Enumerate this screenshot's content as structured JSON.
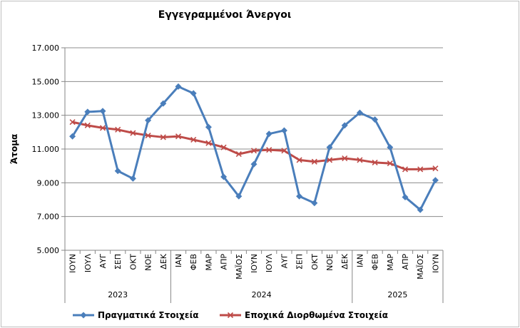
{
  "chart_data": {
    "type": "line",
    "title": "Εγγεγραμμένοι Άνεργοι",
    "ylabel": "Άτομα",
    "xlabel": "",
    "ylim": [
      5000,
      17000
    ],
    "yticks": [
      5000,
      7000,
      9000,
      11000,
      13000,
      15000,
      17000
    ],
    "ytick_labels": [
      "5.000",
      "7.000",
      "9.000",
      "11.000",
      "13.000",
      "15.000",
      "17.000"
    ],
    "grid": true,
    "legend_position": "bottom",
    "categories": [
      "ΙΟΥΝ",
      "ΙΟΥΛ",
      "ΑΥΓ",
      "ΣΕΠ",
      "ΟΚΤ",
      "ΝΟΕ",
      "ΔΕΚ",
      "ΙΑΝ",
      "ΦΕΒ",
      "ΜΑΡ",
      "ΑΠΡ",
      "ΜΑΪΟΣ",
      "ΙΟΥΝ",
      "ΙΟΥΛ",
      "ΑΥΓ",
      "ΣΕΠ",
      "ΟΚΤ",
      "ΝΟΕ",
      "ΔΕΚ",
      "ΙΑΝ",
      "ΦΕΒ",
      "ΜΑΡ",
      "ΑΠΡ",
      "ΜΑΪΟΣ",
      "ΙΟΥΝ"
    ],
    "year_groups": [
      {
        "label": "2023",
        "start": 0,
        "end": 6
      },
      {
        "label": "2024",
        "start": 7,
        "end": 18
      },
      {
        "label": "2025",
        "start": 19,
        "end": 24
      }
    ],
    "series": [
      {
        "name": "Πραγματικά Στοιχεία",
        "color": "#4a7ebb",
        "marker": "diamond",
        "values": [
          11750,
          13200,
          13250,
          9700,
          9250,
          12700,
          13700,
          14700,
          14300,
          12300,
          9350,
          8200,
          10100,
          11900,
          12100,
          8200,
          7800,
          11100,
          12400,
          13150,
          12750,
          11100,
          8150,
          7400,
          9150
        ]
      },
      {
        "name": "Εποχικά Διορθωμένα Στοιχεία",
        "color": "#be4b48",
        "marker": "cross",
        "values": [
          12600,
          12400,
          12250,
          12150,
          11950,
          11800,
          11700,
          11750,
          11550,
          11350,
          11100,
          10700,
          10900,
          10950,
          10900,
          10350,
          10250,
          10350,
          10450,
          10350,
          10200,
          10150,
          9800,
          9800,
          9850
        ]
      }
    ]
  }
}
